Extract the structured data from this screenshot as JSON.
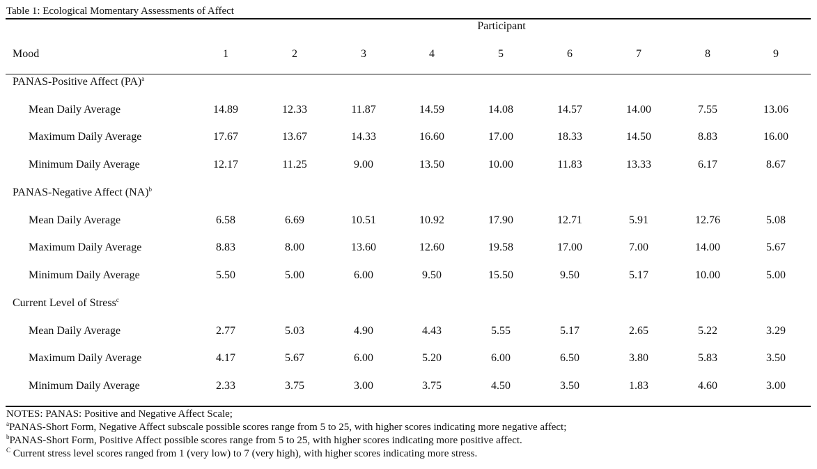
{
  "table": {
    "caption": "Table 1: Ecological Momentary Assessments of Affect",
    "participant_header": "Participant",
    "mood_header": "Mood",
    "participants": [
      "1",
      "2",
      "3",
      "4",
      "5",
      "6",
      "7",
      "8",
      "9"
    ],
    "groups": [
      {
        "label": "PANAS-Positive Affect (PA)",
        "marker": "a",
        "rows": [
          {
            "label": "Mean Daily Average",
            "values": [
              "14.89",
              "12.33",
              "11.87",
              "14.59",
              "14.08",
              "14.57",
              "14.00",
              "7.55",
              "13.06"
            ]
          },
          {
            "label": "Maximum Daily Average",
            "values": [
              "17.67",
              "13.67",
              "14.33",
              "16.60",
              "17.00",
              "18.33",
              "14.50",
              "8.83",
              "16.00"
            ]
          },
          {
            "label": "Minimum Daily Average",
            "values": [
              "12.17",
              "11.25",
              "9.00",
              "13.50",
              "10.00",
              "11.83",
              "13.33",
              "6.17",
              "8.67"
            ]
          }
        ]
      },
      {
        "label": "PANAS-Negative Affect (NA)",
        "marker": "b",
        "rows": [
          {
            "label": "Mean Daily Average",
            "values": [
              "6.58",
              "6.69",
              "10.51",
              "10.92",
              "17.90",
              "12.71",
              "5.91",
              "12.76",
              "5.08"
            ]
          },
          {
            "label": "Maximum Daily Average",
            "values": [
              "8.83",
              "8.00",
              "13.60",
              "12.60",
              "19.58",
              "17.00",
              "7.00",
              "14.00",
              "5.67"
            ]
          },
          {
            "label": "Minimum Daily Average",
            "values": [
              "5.50",
              "5.00",
              "6.00",
              "9.50",
              "15.50",
              "9.50",
              "5.17",
              "10.00",
              "5.00"
            ]
          }
        ]
      },
      {
        "label": "Current Level of Stress",
        "marker": "c",
        "rows": [
          {
            "label": "Mean Daily Average",
            "values": [
              "2.77",
              "5.03",
              "4.90",
              "4.43",
              "5.55",
              "5.17",
              "2.65",
              "5.22",
              "3.29"
            ]
          },
          {
            "label": "Maximum Daily Average",
            "values": [
              "4.17",
              "5.67",
              "6.00",
              "5.20",
              "6.00",
              "6.50",
              "3.80",
              "5.83",
              "3.50"
            ]
          },
          {
            "label": "Minimum Daily Average",
            "values": [
              "2.33",
              "3.75",
              "3.00",
              "3.75",
              "4.50",
              "3.50",
              "1.83",
              "4.60",
              "3.00"
            ]
          }
        ]
      }
    ]
  },
  "notes": {
    "line1": "NOTES: PANAS: Positive and Negative Affect Scale;",
    "line2_marker": "a",
    "line2": "PANAS-Short Form, Negative Affect subscale possible scores range from 5 to 25, with higher scores indicating more negative affect;",
    "line3_marker": "b",
    "line3": "PANAS-Short Form, Positive Affect possible scores range from 5 to 25, with higher scores indicating more positive affect.",
    "line4_marker": "C",
    "line4": " Current stress level scores ranged from 1 (very low) to 7 (very high), with higher scores indicating more stress."
  }
}
